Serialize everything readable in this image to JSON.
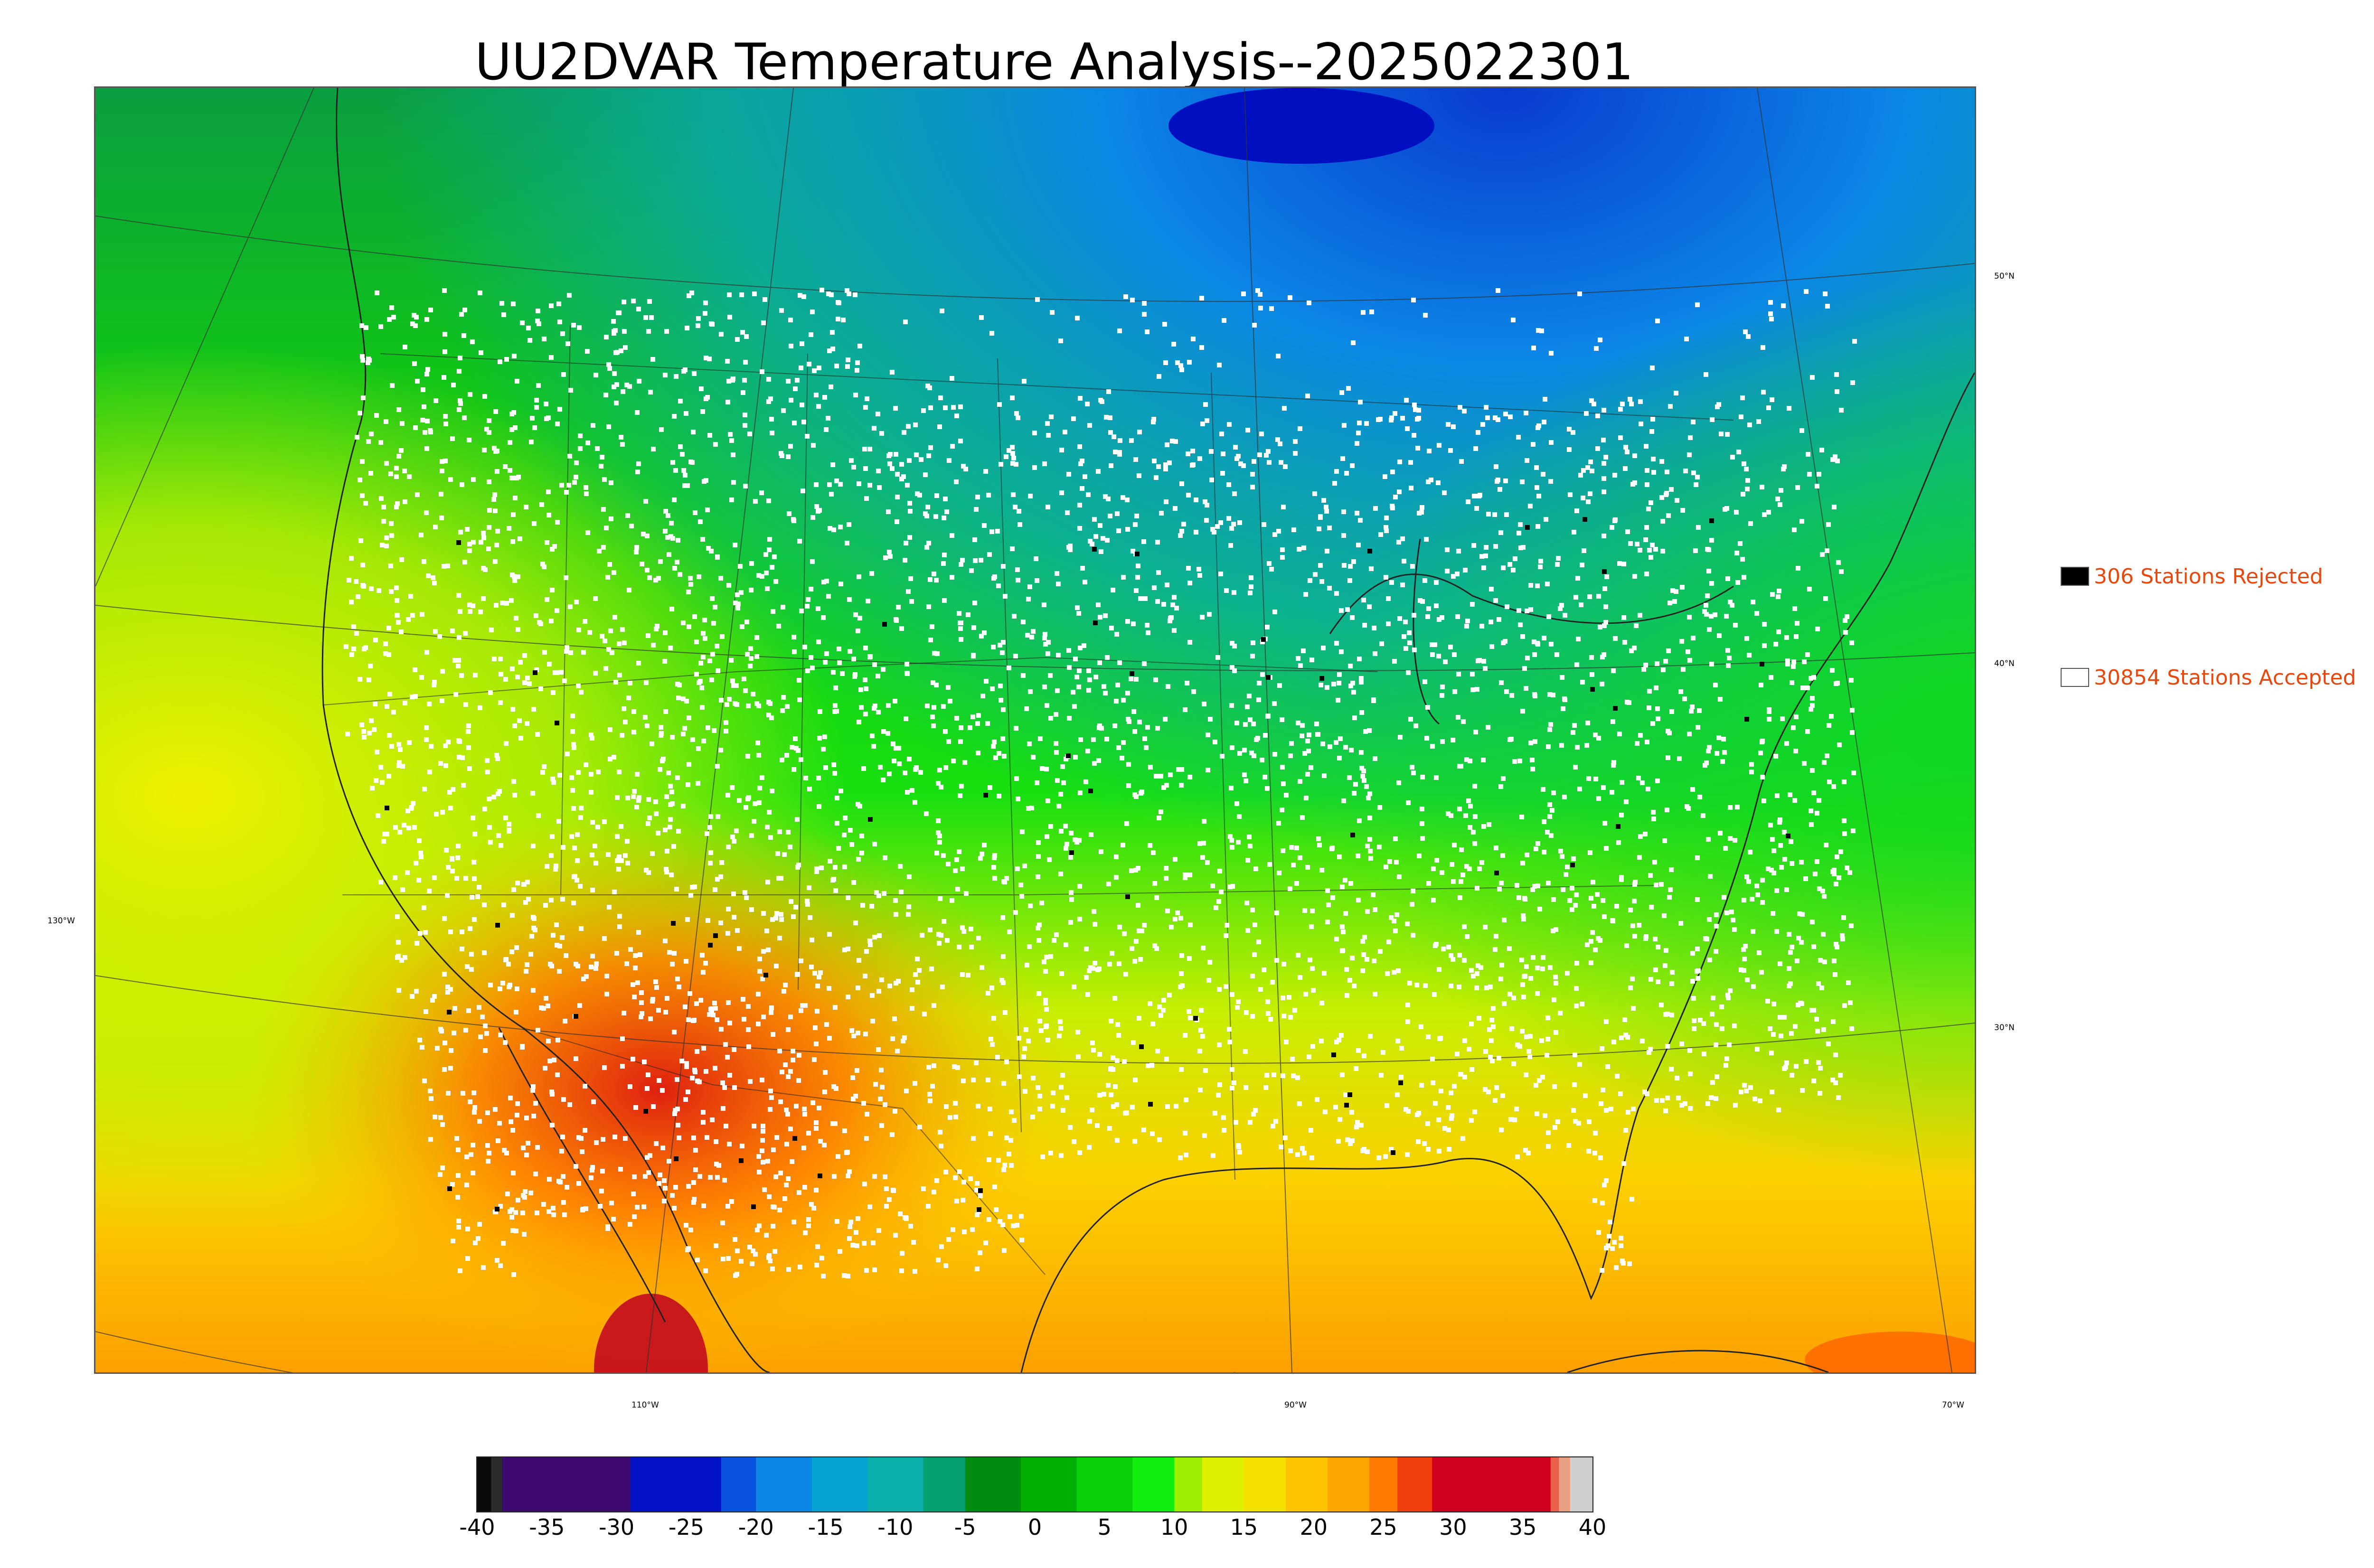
{
  "title": "UU2DVAR Temperature Analysis--2025022301",
  "legend": {
    "rejected": {
      "label": "306 Stations Rejected",
      "swatch_color": "#000000"
    },
    "accepted": {
      "label": "30854 Stations Accepted",
      "swatch_color": "#ffffff"
    }
  },
  "axis_labels": {
    "lat_50": "50°N",
    "lat_40": "40°N",
    "lat_30": "30°N",
    "lon_130": "130°W",
    "lon_110": "110°W",
    "lon_90": "90°W",
    "lon_70": "70°W"
  },
  "colorbar": {
    "ticks": [
      "-40",
      "-35",
      "-30",
      "-25",
      "-20",
      "-15",
      "-10",
      "-5",
      "0",
      "5",
      "10",
      "15",
      "20",
      "25",
      "30",
      "35",
      "40"
    ],
    "range": [
      -40,
      40
    ],
    "segments": [
      {
        "from": -40,
        "to": -39,
        "color": "#0a0a0a"
      },
      {
        "from": -39,
        "to": -38.2,
        "color": "#2b2b2b"
      },
      {
        "from": -38.2,
        "to": -29,
        "color": "#3f0a70"
      },
      {
        "from": -29,
        "to": -22.5,
        "color": "#0012c4"
      },
      {
        "from": -22.5,
        "to": -20,
        "color": "#0a52e0"
      },
      {
        "from": -20,
        "to": -16,
        "color": "#0b86e6"
      },
      {
        "from": -16,
        "to": -12,
        "color": "#05a2d2"
      },
      {
        "from": -12,
        "to": -8,
        "color": "#0bafaa"
      },
      {
        "from": -8,
        "to": -5,
        "color": "#05a070"
      },
      {
        "from": -5,
        "to": -1,
        "color": "#008c10"
      },
      {
        "from": -1,
        "to": 3,
        "color": "#02b005"
      },
      {
        "from": 3,
        "to": 7,
        "color": "#0ad00a"
      },
      {
        "from": 7,
        "to": 10,
        "color": "#12ee10"
      },
      {
        "from": 10,
        "to": 12,
        "color": "#9af000"
      },
      {
        "from": 12,
        "to": 15,
        "color": "#dcf000"
      },
      {
        "from": 15,
        "to": 18,
        "color": "#f4e000"
      },
      {
        "from": 18,
        "to": 21,
        "color": "#fcc400"
      },
      {
        "from": 21,
        "to": 24,
        "color": "#fca400"
      },
      {
        "from": 24,
        "to": 26,
        "color": "#ff7a00"
      },
      {
        "from": 26,
        "to": 28.5,
        "color": "#f04010"
      },
      {
        "from": 28.5,
        "to": 37,
        "color": "#d00020"
      },
      {
        "from": 37,
        "to": 37.6,
        "color": "#e86048"
      },
      {
        "from": 37.6,
        "to": 38.4,
        "color": "#e8a080"
      },
      {
        "from": 38.4,
        "to": 40,
        "color": "#cfcfcf"
      }
    ]
  }
}
